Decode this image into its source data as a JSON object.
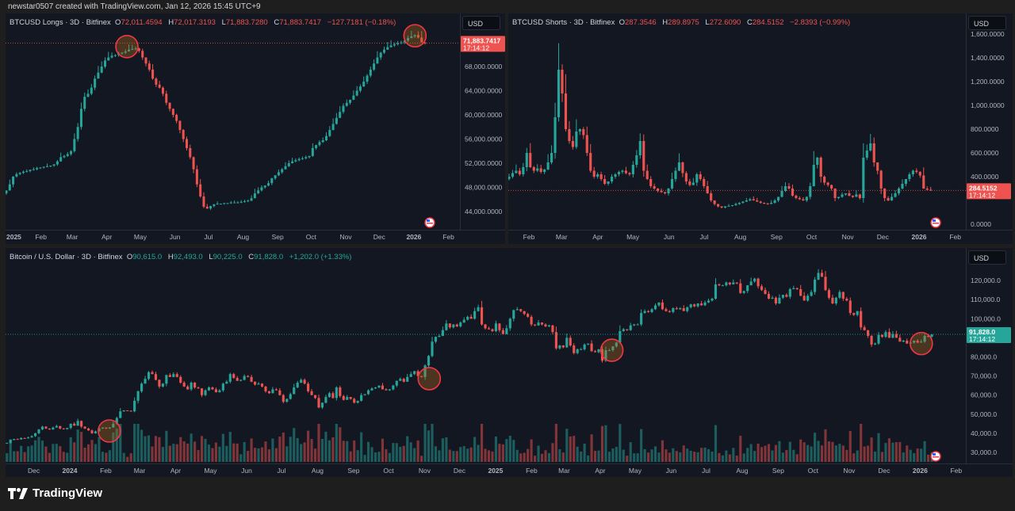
{
  "credit": "newstar0507 created with TradingView.com, Jan 12, 2026 15:45 UTC+9",
  "brand": "TradingView",
  "colors": {
    "up": "#26a69a",
    "down": "#ef5350",
    "background": "#131722",
    "highlight": "#f23645"
  },
  "currency_button": "USD",
  "chart_data": [
    {
      "id": "longs",
      "type": "candlestick",
      "title": "BTCUSD Longs · 3D · Bitfinex",
      "ohlc_labels": {
        "o": "O",
        "h": "H",
        "l": "L",
        "c": "C"
      },
      "ohlc": {
        "o": "72,011.4594",
        "h": "72,017.3193",
        "l": "71,883.7280",
        "c": "71,883.7417",
        "change": "−127.7181 (−0.18%)"
      },
      "direction": "down",
      "last_price_label": "71,883.7417",
      "countdown": "17:14:12",
      "ylim": [
        44000,
        68000
      ],
      "yticks": [
        {
          "v": 44000,
          "label": "44,000.0000"
        },
        {
          "v": 48000,
          "label": "48,000.0000"
        },
        {
          "v": 52000,
          "label": "52,000.0000"
        },
        {
          "v": 56000,
          "label": "56,000.0000"
        },
        {
          "v": 60000,
          "label": "60,000.0000"
        },
        {
          "v": 64000,
          "label": "64,000.0000"
        },
        {
          "v": 68000,
          "label": "68,000.0000"
        }
      ],
      "xticks": [
        {
          "d": "2025-01-01",
          "label": "2025"
        },
        {
          "d": "2025-02-01",
          "label": "Feb"
        },
        {
          "d": "2025-03-01",
          "label": "Mar"
        },
        {
          "d": "2025-04-01",
          "label": "Apr"
        },
        {
          "d": "2025-05-01",
          "label": "May"
        },
        {
          "d": "2025-06-01",
          "label": "Jun"
        },
        {
          "d": "2025-07-01",
          "label": "Jul"
        },
        {
          "d": "2025-08-01",
          "label": "Aug"
        },
        {
          "d": "2025-09-01",
          "label": "Sep"
        },
        {
          "d": "2025-10-01",
          "label": "Oct"
        },
        {
          "d": "2025-11-01",
          "label": "Nov"
        },
        {
          "d": "2025-12-01",
          "label": "Dec"
        },
        {
          "d": "2026-01-01",
          "label": "2026"
        },
        {
          "d": "2026-02-01",
          "label": "Feb"
        }
      ],
      "x_start": "2025-01-01",
      "x_end": "2026-01-11",
      "closes": [
        47500,
        48500,
        49800,
        50200,
        50400,
        50600,
        50700,
        50900,
        51000,
        51200,
        51300,
        51400,
        51500,
        51600,
        51800,
        52300,
        53000,
        53200,
        53500,
        54000,
        56000,
        58000,
        61000,
        63000,
        63500,
        64500,
        66000,
        67000,
        68000,
        69000,
        69500,
        69800,
        69900,
        70200,
        70300,
        70500,
        70800,
        70900,
        71000,
        70600,
        69500,
        68500,
        67500,
        66000,
        65000,
        64500,
        63500,
        62000,
        61000,
        60000,
        59000,
        57500,
        56000,
        54500,
        53000,
        51000,
        48500,
        46500,
        44800,
        44500,
        44900,
        45200,
        45300,
        45300,
        45400,
        45400,
        45500,
        45500,
        45500,
        45600,
        45700,
        45800,
        46200,
        47000,
        47500,
        48000,
        48300,
        48700,
        49500,
        50000,
        50500,
        51000,
        51500,
        52000,
        52300,
        52500,
        52700,
        52800,
        53000,
        53200,
        54500,
        55000,
        55500,
        55800,
        56500,
        57500,
        58500,
        59500,
        60500,
        61500,
        62000,
        62500,
        63200,
        64000,
        64700,
        65500,
        66500,
        67500,
        68500,
        69500,
        70300,
        70800,
        71200,
        71500,
        71700,
        71900,
        72000,
        72300,
        72700,
        73000,
        73200,
        72800,
        72000,
        71883.7417
      ],
      "highlights": [
        {
          "d": "2025-04-19",
          "v": 71300
        },
        {
          "d": "2026-01-02",
          "v": 73100
        }
      ]
    },
    {
      "id": "shorts",
      "type": "candlestick",
      "title": "BTCUSD Shorts · 3D · Bitfinex",
      "ohlc_labels": {
        "o": "O",
        "h": "H",
        "l": "L",
        "c": "C"
      },
      "ohlc": {
        "o": "287.3546",
        "h": "289.8975",
        "l": "272.6090",
        "c": "284.5152",
        "change": "−2.8393 (−0.99%)"
      },
      "direction": "down",
      "last_price_label": "284.5152",
      "countdown": "17:14:12",
      "ylim": [
        0,
        1600
      ],
      "yticks": [
        {
          "v": 0,
          "label": "0.0000"
        },
        {
          "v": 400,
          "label": "400.0000"
        },
        {
          "v": 600,
          "label": "600.0000"
        },
        {
          "v": 800,
          "label": "800.0000"
        },
        {
          "v": 1000,
          "label": "1,000.0000"
        },
        {
          "v": 1200,
          "label": "1,200.0000"
        },
        {
          "v": 1400,
          "label": "1,400.0000"
        },
        {
          "v": 1600,
          "label": "1,600.0000"
        }
      ],
      "xticks": [
        {
          "d": "2025-02-01",
          "label": "Feb"
        },
        {
          "d": "2025-03-01",
          "label": "Mar"
        },
        {
          "d": "2025-04-01",
          "label": "Apr"
        },
        {
          "d": "2025-05-01",
          "label": "May"
        },
        {
          "d": "2025-06-01",
          "label": "Jun"
        },
        {
          "d": "2025-07-01",
          "label": "Jul"
        },
        {
          "d": "2025-08-01",
          "label": "Aug"
        },
        {
          "d": "2025-09-01",
          "label": "Sep"
        },
        {
          "d": "2025-10-01",
          "label": "Oct"
        },
        {
          "d": "2025-11-01",
          "label": "Nov"
        },
        {
          "d": "2025-12-01",
          "label": "Dec"
        },
        {
          "d": "2026-01-01",
          "label": "2026"
        },
        {
          "d": "2026-02-01",
          "label": "Feb"
        }
      ],
      "x_start": "2025-01-15",
      "x_end": "2026-01-11",
      "closes": [
        400,
        430,
        450,
        420,
        480,
        600,
        480,
        450,
        470,
        440,
        460,
        520,
        600,
        900,
        1300,
        1100,
        800,
        700,
        650,
        780,
        800,
        750,
        600,
        450,
        400,
        420,
        380,
        340,
        360,
        400,
        420,
        440,
        450,
        430,
        420,
        500,
        580,
        700,
        450,
        380,
        320,
        300,
        280,
        270,
        260,
        300,
        380,
        450,
        520,
        430,
        360,
        330,
        350,
        420,
        380,
        320,
        260,
        200,
        170,
        150,
        140,
        150,
        155,
        160,
        170,
        180,
        190,
        200,
        210,
        200,
        190,
        180,
        175,
        170,
        180,
        200,
        230,
        280,
        320,
        300,
        240,
        220,
        210,
        200,
        230,
        320,
        500,
        560,
        400,
        350,
        330,
        300,
        220,
        230,
        250,
        260,
        240,
        230,
        250,
        220,
        560,
        620,
        680,
        520,
        450,
        300,
        220,
        200,
        230,
        260,
        300,
        340,
        380,
        420,
        450,
        440,
        410,
        300,
        290,
        284.5152
      ],
      "highlights": []
    },
    {
      "id": "btcusd",
      "type": "candlestick",
      "title": "Bitcoin / U.S. Dollar · 3D · Bitfinex",
      "ohlc_labels": {
        "o": "O",
        "h": "H",
        "l": "L",
        "c": "C"
      },
      "ohlc": {
        "o": "90,615.0",
        "h": "92,493.0",
        "l": "90,225.0",
        "c": "91,828.0",
        "change": "+1,202.0 (+1.33%)"
      },
      "direction": "up",
      "last_price_label": "91,828.0",
      "countdown": "17:14:12",
      "ylim": [
        30000,
        120000
      ],
      "yticks": [
        {
          "v": 30000,
          "label": "30,000.0"
        },
        {
          "v": 40000,
          "label": "40,000.0"
        },
        {
          "v": 50000,
          "label": "50,000.0"
        },
        {
          "v": 60000,
          "label": "60,000.0"
        },
        {
          "v": 70000,
          "label": "70,000.0"
        },
        {
          "v": 80000,
          "label": "80,000.0"
        },
        {
          "v": 100000,
          "label": "100,000.0"
        },
        {
          "v": 110000,
          "label": "110,000.0"
        },
        {
          "v": 120000,
          "label": "120,000.0"
        }
      ],
      "xticks": [
        {
          "d": "2023-12-01",
          "label": "Dec"
        },
        {
          "d": "2024-01-01",
          "label": "2024"
        },
        {
          "d": "2024-02-01",
          "label": "Feb"
        },
        {
          "d": "2024-03-01",
          "label": "Mar"
        },
        {
          "d": "2024-04-01",
          "label": "Apr"
        },
        {
          "d": "2024-05-01",
          "label": "May"
        },
        {
          "d": "2024-06-01",
          "label": "Jun"
        },
        {
          "d": "2024-07-01",
          "label": "Jul"
        },
        {
          "d": "2024-08-01",
          "label": "Aug"
        },
        {
          "d": "2024-09-01",
          "label": "Sep"
        },
        {
          "d": "2024-10-01",
          "label": "Oct"
        },
        {
          "d": "2024-11-01",
          "label": "Nov"
        },
        {
          "d": "2024-12-01",
          "label": "Dec"
        },
        {
          "d": "2025-01-01",
          "label": "2025"
        },
        {
          "d": "2025-02-01",
          "label": "Feb"
        },
        {
          "d": "2025-03-01",
          "label": "Mar"
        },
        {
          "d": "2025-04-01",
          "label": "Apr"
        },
        {
          "d": "2025-05-01",
          "label": "May"
        },
        {
          "d": "2025-06-01",
          "label": "Jun"
        },
        {
          "d": "2025-07-01",
          "label": "Jul"
        },
        {
          "d": "2025-08-01",
          "label": "Aug"
        },
        {
          "d": "2025-09-01",
          "label": "Sep"
        },
        {
          "d": "2025-10-01",
          "label": "Oct"
        },
        {
          "d": "2025-11-01",
          "label": "Nov"
        },
        {
          "d": "2025-12-01",
          "label": "Dec"
        },
        {
          "d": "2026-01-01",
          "label": "2026"
        },
        {
          "d": "2026-02-01",
          "label": "Feb"
        }
      ],
      "x_start": "2023-11-08",
      "x_end": "2026-01-11",
      "volume_shown": true,
      "closes": [
        35000,
        36500,
        37000,
        36800,
        37500,
        37300,
        37800,
        38500,
        40000,
        42000,
        43500,
        42500,
        42000,
        43000,
        43800,
        42500,
        42200,
        42800,
        45000,
        44000,
        46500,
        43500,
        42500,
        41500,
        40000,
        41000,
        42500,
        43000,
        42500,
        43000,
        45000,
        48000,
        51500,
        52000,
        51800,
        51500,
        57000,
        62000,
        66000,
        68500,
        72000,
        71000,
        68000,
        64500,
        66000,
        70500,
        69500,
        71000,
        69500,
        66500,
        64500,
        63000,
        66500,
        64000,
        63500,
        60000,
        62500,
        64000,
        63000,
        61500,
        62500,
        66000,
        67000,
        71000,
        69000,
        67500,
        68000,
        70000,
        69500,
        67000,
        65500,
        66000,
        64500,
        62000,
        61000,
        63000,
        62500,
        60000,
        56500,
        58000,
        60500,
        64000,
        66500,
        68000,
        66000,
        62000,
        60000,
        58500,
        53500,
        56000,
        59000,
        61000,
        58500,
        64000,
        59500,
        57500,
        59000,
        58000,
        56000,
        57000,
        60000,
        60500,
        62500,
        63500,
        64000,
        65000,
        63000,
        62500,
        63000,
        65000,
        67500,
        68500,
        67000,
        69500,
        71000,
        72500,
        70000,
        69500,
        75500,
        80500,
        88000,
        90500,
        91000,
        94000,
        97500,
        95500,
        97000,
        96000,
        98000,
        99500,
        101000,
        100000,
        104000,
        106000,
        97000,
        95000,
        94500,
        93500,
        97500,
        94000,
        92000,
        95000,
        100000,
        104500,
        105000,
        104000,
        102500,
        101000,
        97000,
        96500,
        98000,
        97000,
        96000,
        96500,
        93000,
        84500,
        86000,
        85000,
        90000,
        86000,
        82000,
        84000,
        84000,
        86500,
        87000,
        83000,
        82500,
        84000,
        78000,
        83500,
        83500,
        85500,
        87500,
        93500,
        94500,
        94000,
        96500,
        97000,
        97000,
        103000,
        104000,
        103500,
        105000,
        107000,
        108500,
        105000,
        104000,
        103500,
        105500,
        105000,
        105500,
        104000,
        106000,
        107500,
        106500,
        108000,
        107000,
        108500,
        109500,
        110500,
        118000,
        117500,
        117500,
        119000,
        118000,
        119000,
        118500,
        113500,
        114500,
        117500,
        119500,
        121000,
        117000,
        115000,
        113000,
        110500,
        111000,
        108000,
        111000,
        112500,
        111500,
        115500,
        116000,
        115500,
        112000,
        109500,
        112000,
        114000,
        120500,
        124000,
        122000,
        115000,
        111000,
        108000,
        111000,
        114000,
        110500,
        109500,
        103000,
        102000,
        104000,
        95500,
        94000,
        91000,
        86500,
        87000,
        91500,
        90500,
        93000,
        90000,
        92000,
        90000,
        88000,
        88500,
        87000,
        87500,
        88500,
        87500,
        88000,
        91000,
        90600,
        91828
      ],
      "highlights": [
        {
          "d": "2024-02-04",
          "v": 41200
        },
        {
          "d": "2024-11-05",
          "v": 68600
        },
        {
          "d": "2025-04-11",
          "v": 83500
        },
        {
          "d": "2026-01-02",
          "v": 87000
        }
      ]
    }
  ]
}
